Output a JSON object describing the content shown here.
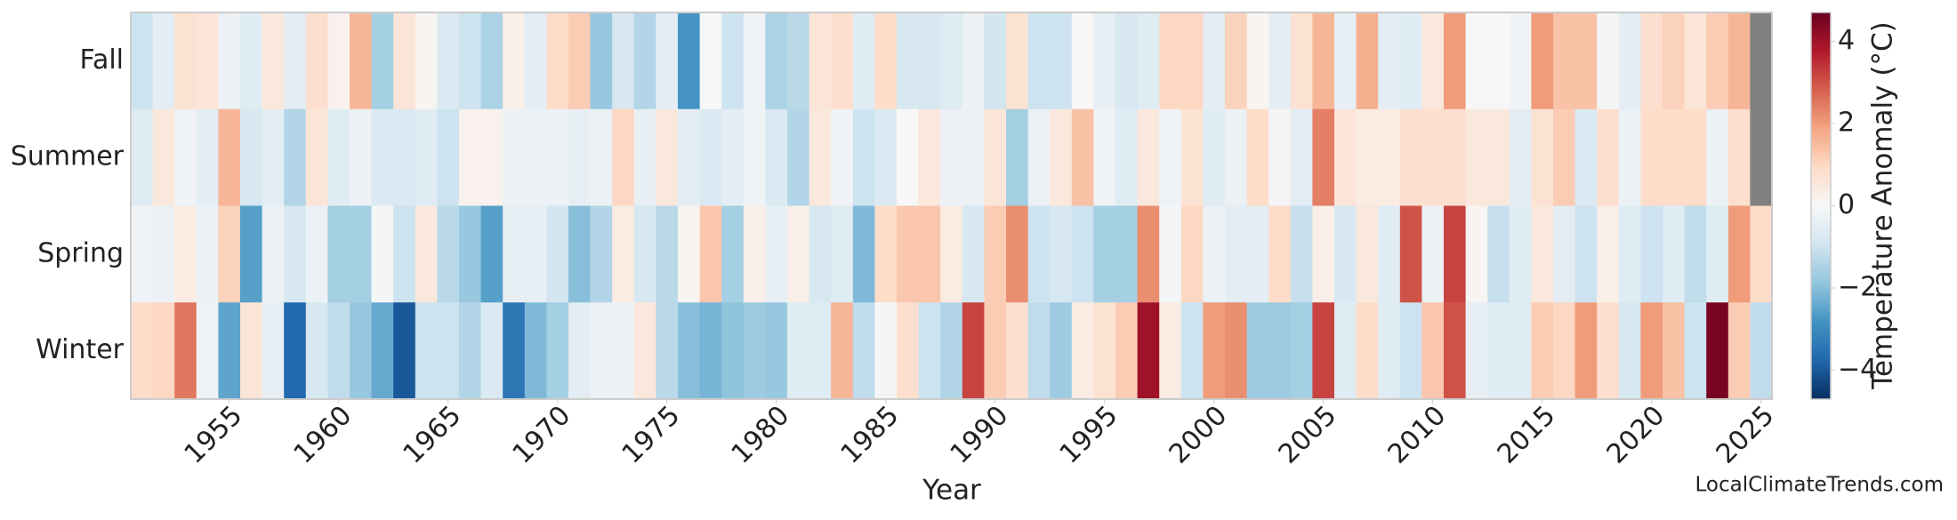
{
  "chart_data": {
    "type": "heatmap",
    "x_label": "Year",
    "colorbar_label": "Temperature Anomaly (°C)",
    "annotation": "LocalClimateTrends.com",
    "x": [
      1951,
      1952,
      1953,
      1954,
      1955,
      1956,
      1957,
      1958,
      1959,
      1960,
      1961,
      1962,
      1963,
      1964,
      1965,
      1966,
      1967,
      1968,
      1969,
      1970,
      1971,
      1972,
      1973,
      1974,
      1975,
      1976,
      1977,
      1978,
      1979,
      1980,
      1981,
      1982,
      1983,
      1984,
      1985,
      1986,
      1987,
      1988,
      1989,
      1990,
      1991,
      1992,
      1993,
      1994,
      1995,
      1996,
      1997,
      1998,
      1999,
      2000,
      2001,
      2002,
      2003,
      2004,
      2005,
      2006,
      2007,
      2008,
      2009,
      2010,
      2011,
      2012,
      2013,
      2014,
      2015,
      2016,
      2017,
      2018,
      2019,
      2020,
      2021,
      2022,
      2023,
      2024,
      2025
    ],
    "categories": [
      "Fall",
      "Summer",
      "Spring",
      "Winter"
    ],
    "values": [
      [
        -1.0,
        -0.5,
        0.7,
        0.6,
        -0.3,
        -0.6,
        0.5,
        -0.5,
        0.8,
        0.2,
        1.6,
        -1.6,
        0.6,
        0.1,
        -0.7,
        -1.0,
        -1.5,
        0.3,
        -0.5,
        0.9,
        1.2,
        -1.8,
        -0.8,
        -1.4,
        -0.5,
        -2.8,
        0.0,
        -1.0,
        -0.2,
        -1.5,
        -1.3,
        0.6,
        0.8,
        -0.6,
        0.9,
        -0.8,
        -0.8,
        -0.6,
        -0.3,
        -0.9,
        0.7,
        -1.0,
        -1.0,
        0.0,
        -0.4,
        -0.8,
        -0.6,
        1.0,
        1.0,
        -0.5,
        1.1,
        0.1,
        -0.5,
        0.7,
        1.6,
        -0.4,
        1.7,
        -0.5,
        -0.6,
        0.5,
        2.0,
        0.0,
        0.0,
        -0.2,
        2.0,
        1.4,
        1.4,
        -0.1,
        -0.5,
        0.8,
        1.1,
        0.6,
        1.2,
        1.6,
        null
      ],
      [
        -0.6,
        0.5,
        -0.2,
        -0.5,
        1.6,
        -0.8,
        -0.5,
        -1.4,
        0.6,
        -0.6,
        -0.3,
        -0.7,
        -0.7,
        -0.6,
        -1.0,
        0.2,
        0.2,
        -0.3,
        -0.3,
        -0.3,
        -0.4,
        -0.3,
        1.0,
        -0.4,
        0.5,
        -0.5,
        -0.7,
        -0.5,
        -0.2,
        -0.7,
        -1.4,
        0.5,
        -0.2,
        -1.0,
        -0.7,
        0.0,
        0.5,
        -0.3,
        -0.3,
        0.6,
        -1.6,
        -0.3,
        0.5,
        1.4,
        -0.2,
        -0.6,
        0.5,
        -0.2,
        0.7,
        -0.6,
        -0.3,
        0.9,
        -0.1,
        -0.5,
        2.4,
        0.6,
        0.4,
        0.4,
        0.8,
        0.8,
        0.8,
        0.5,
        0.5,
        -0.5,
        0.7,
        1.2,
        -0.7,
        0.8,
        -0.3,
        0.9,
        0.9,
        0.9,
        -0.3,
        0.8,
        null
      ],
      [
        -0.2,
        -0.3,
        0.4,
        -0.3,
        1.1,
        -2.6,
        -0.3,
        -0.8,
        -0.3,
        -1.6,
        -1.6,
        -0.1,
        -1.0,
        0.5,
        -1.3,
        -1.8,
        -2.6,
        -0.4,
        -0.4,
        -0.9,
        -2.0,
        -1.4,
        0.4,
        -0.8,
        -1.3,
        0.1,
        1.3,
        -1.6,
        0.3,
        -0.4,
        0.3,
        -0.8,
        -0.6,
        -2.1,
        0.9,
        1.3,
        1.3,
        0.4,
        -0.8,
        1.2,
        2.2,
        -1.0,
        -0.8,
        -1.0,
        -1.6,
        -1.6,
        2.2,
        -0.1,
        1.0,
        -0.3,
        -0.5,
        -0.5,
        0.9,
        -1.1,
        0.3,
        -0.8,
        0.5,
        -0.6,
        3.0,
        -0.3,
        3.2,
        0.1,
        -1.1,
        -0.6,
        0.5,
        -0.5,
        -1.0,
        0.3,
        -0.6,
        -1.0,
        -0.6,
        -1.2,
        -0.6,
        2.0,
        0.9
      ],
      [
        0.9,
        1.0,
        2.5,
        -0.2,
        -2.5,
        0.6,
        -0.4,
        -3.7,
        -0.8,
        -1.2,
        -1.8,
        -2.4,
        -4.0,
        -1.0,
        -1.0,
        -1.4,
        -0.7,
        -3.4,
        -2.1,
        -1.6,
        -0.5,
        -0.3,
        -0.3,
        0.5,
        -1.3,
        -2.0,
        -2.2,
        -1.9,
        -1.7,
        -1.8,
        -0.6,
        -0.6,
        1.6,
        -1.2,
        -0.1,
        0.8,
        -1.0,
        -1.4,
        3.2,
        1.2,
        0.8,
        -1.2,
        -1.7,
        0.4,
        0.7,
        1.2,
        4.0,
        0.4,
        -1.0,
        2.0,
        2.2,
        -1.7,
        -1.7,
        -1.6,
        3.2,
        -0.6,
        0.9,
        -0.6,
        -1.0,
        1.3,
        3.0,
        -0.4,
        -0.6,
        -0.6,
        1.2,
        1.0,
        2.0,
        0.8,
        -0.8,
        2.0,
        1.4,
        -1.0,
        4.5,
        1.2,
        -1.2
      ]
    ],
    "xlim": [
      1950.5,
      2025.5
    ],
    "xticks": [
      1955,
      1960,
      1965,
      1970,
      1975,
      1980,
      1985,
      1990,
      1995,
      2000,
      2005,
      2010,
      2015,
      2020,
      2025
    ],
    "zlim": [
      -4.7,
      4.7
    ],
    "zticks": [
      {
        "value": -4,
        "label": "−4"
      },
      {
        "value": -2,
        "label": "−2"
      },
      0,
      2,
      4
    ],
    "colorscale": [
      "#053061",
      "#2166ac",
      "#4393c3",
      "#92c5de",
      "#d1e5f0",
      "#f7f7f7",
      "#fddbc7",
      "#f4a582",
      "#d6604d",
      "#b2182b",
      "#67001f"
    ],
    "null_color": "#808080"
  }
}
